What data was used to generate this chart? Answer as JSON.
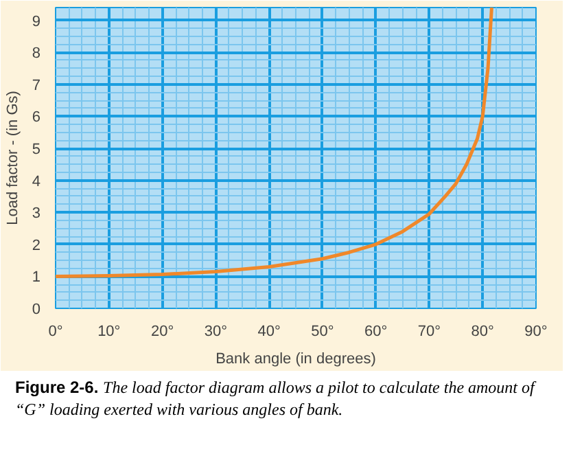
{
  "chart_data": {
    "type": "line",
    "xlabel": "Bank angle (in degrees)",
    "ylabel": "Load factor - (in Gs)",
    "x": [
      0,
      10,
      20,
      30,
      40,
      50,
      55,
      60,
      65,
      70,
      73,
      75,
      77,
      79,
      80,
      81,
      81.7
    ],
    "series": [
      {
        "color": "#f0882a",
        "values": [
          1,
          1.02,
          1.06,
          1.15,
          1.3,
          1.55,
          1.75,
          2,
          2.4,
          2.95,
          3.5,
          3.9,
          4.5,
          5.3,
          6,
          7.5,
          9.4
        ]
      }
    ],
    "xlim": [
      0,
      90
    ],
    "ylim": [
      0,
      9.4
    ],
    "xticks": [
      {
        "value": 0,
        "label": "0°"
      },
      {
        "value": 2.5,
        "label": null
      },
      {
        "value": 5,
        "label": null
      },
      {
        "value": 7.5,
        "label": null
      },
      {
        "value": 10,
        "label": "10°"
      },
      {
        "value": 12.5,
        "label": null
      },
      {
        "value": 15,
        "label": null
      },
      {
        "value": 17.5,
        "label": null
      },
      {
        "value": 20,
        "label": "20°"
      },
      {
        "value": 22.5,
        "label": null
      },
      {
        "value": 25,
        "label": null
      },
      {
        "value": 27.5,
        "label": null
      },
      {
        "value": 30,
        "label": "30°"
      },
      {
        "value": 32.5,
        "label": null
      },
      {
        "value": 35,
        "label": null
      },
      {
        "value": 37.5,
        "label": null
      },
      {
        "value": 40,
        "label": "40°"
      },
      {
        "value": 42.5,
        "label": null
      },
      {
        "value": 45,
        "label": null
      },
      {
        "value": 47.5,
        "label": null
      },
      {
        "value": 50,
        "label": "50°"
      },
      {
        "value": 52.5,
        "label": null
      },
      {
        "value": 55,
        "label": null
      },
      {
        "value": 57.5,
        "label": null
      },
      {
        "value": 60,
        "label": "60°"
      },
      {
        "value": 62.5,
        "label": null
      },
      {
        "value": 65,
        "label": null
      },
      {
        "value": 67.5,
        "label": null
      },
      {
        "value": 70,
        "label": "70°"
      },
      {
        "value": 72.5,
        "label": null
      },
      {
        "value": 75,
        "label": null
      },
      {
        "value": 77.5,
        "label": null
      },
      {
        "value": 80,
        "label": "80°"
      },
      {
        "value": 82.5,
        "label": null
      },
      {
        "value": 85,
        "label": null
      },
      {
        "value": 87.5,
        "label": null
      },
      {
        "value": 90,
        "label": "90°"
      }
    ],
    "yticks": [
      0,
      {
        "value": 0.25,
        "label": null
      },
      {
        "value": 0.5,
        "label": null
      },
      {
        "value": 0.75,
        "label": null
      },
      1,
      {
        "value": 1.25,
        "label": null
      },
      {
        "value": 1.5,
        "label": null
      },
      {
        "value": 1.75,
        "label": null
      },
      2,
      {
        "value": 2.25,
        "label": null
      },
      {
        "value": 2.5,
        "label": null
      },
      {
        "value": 2.75,
        "label": null
      },
      3,
      {
        "value": 3.25,
        "label": null
      },
      {
        "value": 3.5,
        "label": null
      },
      {
        "value": 3.75,
        "label": null
      },
      4,
      {
        "value": 4.25,
        "label": null
      },
      {
        "value": 4.5,
        "label": null
      },
      {
        "value": 4.75,
        "label": null
      },
      5,
      {
        "value": 5.25,
        "label": null
      },
      {
        "value": 5.5,
        "label": null
      },
      {
        "value": 5.75,
        "label": null
      },
      6,
      {
        "value": 6.25,
        "label": null
      },
      {
        "value": 6.5,
        "label": null
      },
      {
        "value": 6.75,
        "label": null
      },
      7,
      {
        "value": 7.25,
        "label": null
      },
      {
        "value": 7.5,
        "label": null
      },
      {
        "value": 7.75,
        "label": null
      },
      8,
      {
        "value": 8.25,
        "label": null
      },
      {
        "value": 8.5,
        "label": null
      },
      {
        "value": 8.75,
        "label": null
      },
      9
    ],
    "grid": true,
    "marker": "none",
    "line_style": "solid",
    "annotations": [
      "Figure 2-6.",
      "The load factor diagram allows a pilot to calculate the amount of “G” loading exerted with various angles of bank."
    ]
  }
}
